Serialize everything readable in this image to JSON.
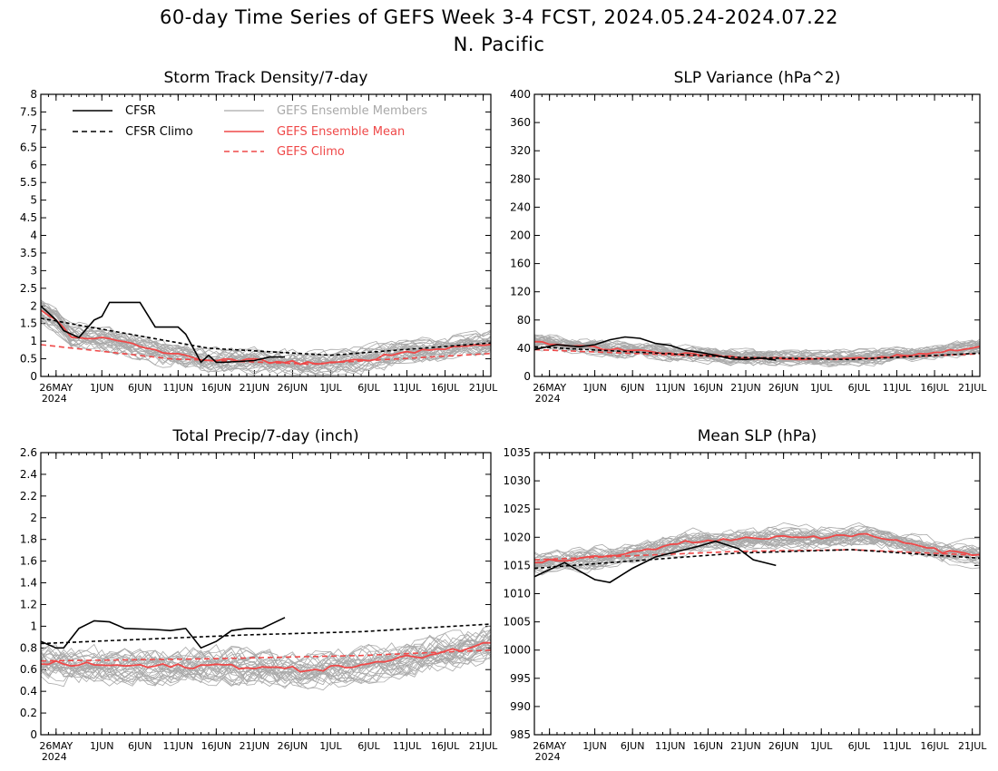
{
  "figure": {
    "title_line1": "60-day Time Series of GEFS Week 3-4 FCST, 2024.05.24-2024.07.22",
    "title_line2": "N. Pacific"
  },
  "colors": {
    "cfsr": "#000000",
    "cfsr_climo": "#000000",
    "members": "#a9a9a9",
    "ens_mean": "#ef4848",
    "gefs_climo": "#ef4848"
  },
  "legend": {
    "cfsr": "CFSR",
    "cfsr_climo": "CFSR Climo",
    "members": "GEFS Ensemble Members",
    "ens_mean": "GEFS Ensemble Mean",
    "gefs_climo": "GEFS Climo"
  },
  "x_axis": {
    "dates": "2024-05-24 to 2024-07-22 (60 days)",
    "tick_labels": [
      "26MAY",
      "1JUN",
      "6JUN",
      "11JUN",
      "16JUN",
      "21JUN",
      "26JUN",
      "1JUL",
      "6JUL",
      "11JUL",
      "16JUL",
      "21JUL"
    ],
    "tick_dates": [
      "2024-05-26",
      "2024-06-01",
      "2024-06-06",
      "2024-06-11",
      "2024-06-16",
      "2024-06-21",
      "2024-06-26",
      "2024-07-01",
      "2024-07-06",
      "2024-07-11",
      "2024-07-16",
      "2024-07-21"
    ],
    "year_label": "2024",
    "range": [
      "2024-05-24",
      "2024-07-22"
    ]
  },
  "chart_data": [
    {
      "type": "line",
      "title": "Storm Track Density/7-day",
      "ylim": [
        0,
        8
      ],
      "yticks": [
        "0",
        "0.5",
        "1",
        "1.5",
        "2",
        "2.5",
        "3",
        "3.5",
        "4",
        "4.5",
        "5",
        "5.5",
        "6",
        "6.5",
        "7",
        "7.5",
        "8"
      ],
      "ytick_values": [
        0,
        0.5,
        1,
        1.5,
        2,
        2.5,
        3,
        3.5,
        4,
        4.5,
        5,
        5.5,
        6,
        6.5,
        7,
        7.5,
        8
      ],
      "cfsr_x": [
        "2024-05-24",
        "2024-05-26",
        "2024-05-27",
        "2024-05-29",
        "2024-05-31",
        "2024-06-01",
        "2024-06-02",
        "2024-06-06",
        "2024-06-08",
        "2024-06-11",
        "2024-06-12",
        "2024-06-14",
        "2024-06-15",
        "2024-06-16",
        "2024-06-17",
        "2024-06-21",
        "2024-06-23",
        "2024-06-25"
      ],
      "cfsr": [
        2.0,
        1.6,
        1.3,
        1.1,
        1.6,
        1.7,
        2.1,
        2.1,
        1.4,
        1.4,
        1.2,
        0.4,
        0.6,
        0.4,
        0.4,
        0.45,
        0.55,
        0.55
      ],
      "cfsr_climo": {
        "x": [
          "2024-05-24",
          "2024-06-15",
          "2024-07-01",
          "2024-07-22"
        ],
        "y": [
          1.65,
          0.8,
          0.6,
          0.95
        ]
      },
      "ens_mean_anchors": {
        "x": [
          "2024-05-24",
          "2024-05-26",
          "2024-05-28",
          "2024-06-02",
          "2024-06-06",
          "2024-06-11",
          "2024-06-16",
          "2024-06-21",
          "2024-06-26",
          "2024-07-01",
          "2024-07-06",
          "2024-07-11",
          "2024-07-16",
          "2024-07-22"
        ],
        "y": [
          1.85,
          1.6,
          1.15,
          1.05,
          0.85,
          0.6,
          0.45,
          0.45,
          0.4,
          0.35,
          0.5,
          0.7,
          0.8,
          0.95
        ]
      },
      "gefs_climo": {
        "x": [
          "2024-05-24",
          "2024-06-10",
          "2024-06-28",
          "2024-07-22"
        ],
        "y": [
          0.9,
          0.5,
          0.35,
          0.65
        ]
      },
      "member_noise": 0.45
    },
    {
      "type": "line",
      "title": "SLP Variance (hPa^2)",
      "ylim": [
        0,
        400
      ],
      "yticks": [
        "0",
        "40",
        "80",
        "120",
        "160",
        "200",
        "240",
        "280",
        "320",
        "360",
        "400"
      ],
      "ytick_values": [
        0,
        40,
        80,
        120,
        160,
        200,
        240,
        280,
        320,
        360,
        400
      ],
      "cfsr_x": [
        "2024-05-24",
        "2024-05-27",
        "2024-05-30",
        "2024-06-01",
        "2024-06-03",
        "2024-06-05",
        "2024-06-07",
        "2024-06-09",
        "2024-06-11",
        "2024-06-13",
        "2024-06-15",
        "2024-06-17",
        "2024-06-19",
        "2024-06-21",
        "2024-06-23",
        "2024-06-25"
      ],
      "cfsr": [
        38,
        45,
        42,
        45,
        52,
        56,
        54,
        47,
        44,
        37,
        34,
        30,
        25,
        24,
        26,
        23
      ],
      "cfsr_climo": {
        "x": [
          "2024-05-24",
          "2024-06-20",
          "2024-07-05",
          "2024-07-22"
        ],
        "y": [
          42,
          27,
          24,
          33
        ]
      },
      "ens_mean_anchors": {
        "x": [
          "2024-05-24",
          "2024-05-28",
          "2024-06-02",
          "2024-06-07",
          "2024-06-12",
          "2024-06-17",
          "2024-06-22",
          "2024-06-27",
          "2024-07-02",
          "2024-07-07",
          "2024-07-12",
          "2024-07-17",
          "2024-07-22"
        ],
        "y": [
          50,
          44,
          40,
          36,
          32,
          30,
          26,
          25,
          24,
          26,
          30,
          35,
          42
        ]
      },
      "gefs_climo": {
        "x": [
          "2024-05-24",
          "2024-06-20",
          "2024-07-05",
          "2024-07-22"
        ],
        "y": [
          38,
          27,
          25,
          32
        ]
      },
      "member_noise": 14
    },
    {
      "type": "line",
      "title": "Total Precip/7-day (inch)",
      "ylim": [
        0,
        2.6
      ],
      "yticks": [
        "0",
        "0.2",
        "0.4",
        "0.6",
        "0.8",
        "1",
        "1.2",
        "1.4",
        "1.6",
        "1.8",
        "2",
        "2.2",
        "2.4",
        "2.6"
      ],
      "ytick_values": [
        0,
        0.2,
        0.4,
        0.6,
        0.8,
        1.0,
        1.2,
        1.4,
        1.6,
        1.8,
        2.0,
        2.2,
        2.4,
        2.6
      ],
      "cfsr_x": [
        "2024-05-24",
        "2024-05-26",
        "2024-05-27",
        "2024-05-29",
        "2024-05-31",
        "2024-06-02",
        "2024-06-04",
        "2024-06-08",
        "2024-06-10",
        "2024-06-12",
        "2024-06-14",
        "2024-06-16",
        "2024-06-18",
        "2024-06-20",
        "2024-06-22",
        "2024-06-25"
      ],
      "cfsr": [
        0.86,
        0.8,
        0.8,
        0.98,
        1.05,
        1.04,
        0.98,
        0.97,
        0.96,
        0.98,
        0.8,
        0.86,
        0.96,
        0.98,
        0.98,
        1.08
      ],
      "cfsr_climo": {
        "x": [
          "2024-05-24",
          "2024-06-20",
          "2024-07-05",
          "2024-07-22"
        ],
        "y": [
          0.84,
          0.92,
          0.95,
          1.02
        ]
      },
      "ens_mean_anchors": {
        "x": [
          "2024-05-24",
          "2024-05-28",
          "2024-06-02",
          "2024-06-07",
          "2024-06-12",
          "2024-06-17",
          "2024-06-22",
          "2024-06-27",
          "2024-07-02",
          "2024-07-07",
          "2024-07-12",
          "2024-07-17",
          "2024-07-22"
        ],
        "y": [
          0.66,
          0.65,
          0.64,
          0.63,
          0.63,
          0.64,
          0.62,
          0.6,
          0.62,
          0.66,
          0.72,
          0.78,
          0.84
        ]
      },
      "gefs_climo": {
        "x": [
          "2024-05-24",
          "2024-06-15",
          "2024-07-05",
          "2024-07-22"
        ],
        "y": [
          0.68,
          0.7,
          0.73,
          0.78
        ]
      },
      "member_noise": 0.2
    },
    {
      "type": "line",
      "title": "Mean SLP (hPa)",
      "ylim": [
        985,
        1035
      ],
      "yticks": [
        "985",
        "990",
        "995",
        "1000",
        "1005",
        "1010",
        "1015",
        "1020",
        "1025",
        "1030",
        "1035"
      ],
      "ytick_values": [
        985,
        990,
        995,
        1000,
        1005,
        1010,
        1015,
        1020,
        1025,
        1030,
        1035
      ],
      "cfsr_x": [
        "2024-05-24",
        "2024-05-28",
        "2024-06-01",
        "2024-06-03",
        "2024-06-06",
        "2024-06-09",
        "2024-06-12",
        "2024-06-15",
        "2024-06-17",
        "2024-06-20",
        "2024-06-22",
        "2024-06-25"
      ],
      "cfsr": [
        1013,
        1015.5,
        1012.5,
        1012,
        1014.5,
        1016.5,
        1017.5,
        1018.5,
        1019.3,
        1018,
        1016,
        1015
      ],
      "cfsr_climo": {
        "x": [
          "2024-05-24",
          "2024-06-20",
          "2024-07-05",
          "2024-07-22"
        ],
        "y": [
          1014.5,
          1017.2,
          1017.8,
          1016.3
        ]
      },
      "ens_mean_anchors": {
        "x": [
          "2024-05-24",
          "2024-05-28",
          "2024-06-02",
          "2024-06-07",
          "2024-06-12",
          "2024-06-17",
          "2024-06-22",
          "2024-06-27",
          "2024-07-02",
          "2024-07-07",
          "2024-07-12",
          "2024-07-17",
          "2024-07-22"
        ],
        "y": [
          1015.5,
          1016,
          1016.5,
          1017.5,
          1019,
          1019.5,
          1019.8,
          1020.2,
          1020,
          1020.5,
          1019,
          1017.5,
          1017
        ]
      },
      "gefs_climo": {
        "x": [
          "2024-05-24",
          "2024-06-20",
          "2024-07-05",
          "2024-07-22"
        ],
        "y": [
          1016,
          1017.5,
          1017.8,
          1016.8
        ]
      },
      "member_noise": 2.5
    }
  ]
}
